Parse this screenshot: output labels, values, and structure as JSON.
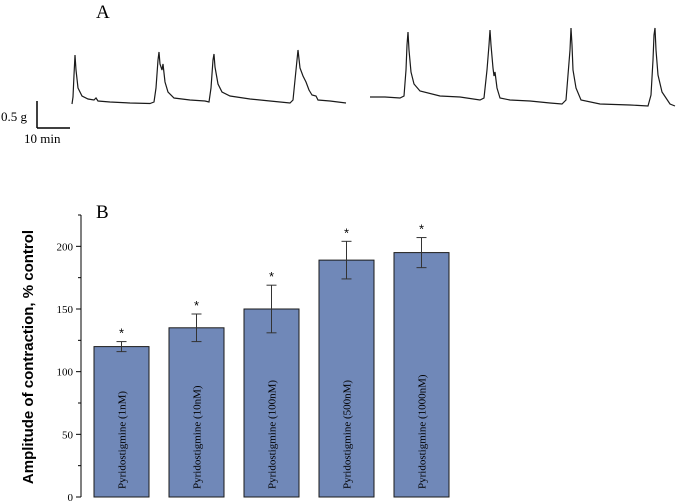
{
  "panel_a": {
    "label": "A",
    "scale_y_label": "0.5 g",
    "scale_x_label": "10 min"
  },
  "chart_data": {
    "type": "bar",
    "panel_label": "B",
    "title": "",
    "xlabel": "",
    "ylabel": "Amplitude of contraction, % control",
    "categories": [
      "Pyridostigmine (1nM)",
      "Pyridostigmine (10nM)",
      "Pyridostigmine (100nM)",
      "Pyridostigmine (500nM)",
      "Pyridostigmine (1000nM)"
    ],
    "values": [
      120,
      135,
      150,
      189,
      195
    ],
    "errors": [
      4,
      11,
      19,
      15,
      12
    ],
    "significance": [
      "*",
      "*",
      "*",
      "*",
      "*"
    ],
    "ylim": [
      0,
      225
    ],
    "yticks": [
      0,
      50,
      100,
      150,
      200
    ],
    "bar_color": "#7088b8",
    "grid": false,
    "legend": "none"
  }
}
